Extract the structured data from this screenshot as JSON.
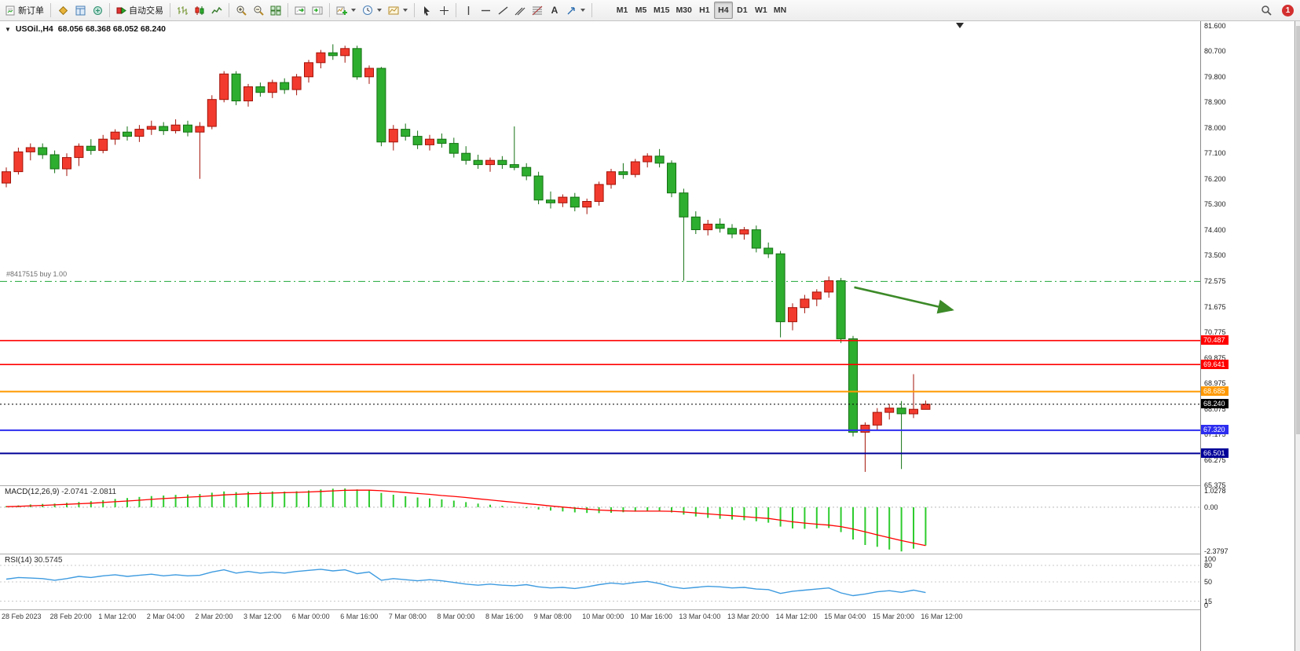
{
  "toolbar": {
    "new_order": "新订单",
    "auto_trading": "自动交易",
    "text_tool": "A",
    "timeframes": [
      "M1",
      "M5",
      "M15",
      "M30",
      "H1",
      "H4",
      "D1",
      "W1",
      "MN"
    ],
    "active_timeframe": "H4",
    "notification_badge": "1"
  },
  "main_chart": {
    "title": "USOil.,H4",
    "ohlc_text": "68.056 68.368 68.052 68.240",
    "position_label": "#8417515 buy 1.00"
  },
  "macd_panel": {
    "label": "MACD(12,26,9)",
    "values_text": "-2.0741 -2.0811"
  },
  "rsi_panel": {
    "label": "RSI(14)",
    "value_text": "30.5745"
  },
  "colors": {
    "bull": "#f23b2e",
    "bull_border": "#a31208",
    "bear": "#2eae2e",
    "bear_border": "#137013",
    "macd_hist": "#2ecc2e",
    "macd_signal": "#ff0000",
    "rsi_line": "#3e9be0",
    "buy_line": "#21a637",
    "level_red": "#ff0000",
    "level_orange": "#ff9900",
    "level_blue": "#2d2df0",
    "level_navy": "#000099",
    "current_price_bg": "#000000",
    "arrow": "#3c8a28"
  },
  "chart_data": [
    {
      "type": "candlestick",
      "symbol": "USOil",
      "timeframe": "H4",
      "current_ohlc": {
        "open": 68.056,
        "high": 68.368,
        "low": 68.052,
        "close": 68.24
      },
      "ylim": [
        65.375,
        81.765
      ],
      "y_tick_labels": [
        "81.600",
        "80.700",
        "79.800",
        "78.900",
        "78.000",
        "77.100",
        "76.200",
        "75.300",
        "74.400",
        "73.500",
        "72.575",
        "71.675",
        "70.775",
        "69.875",
        "68.975",
        "68.075",
        "67.175",
        "66.275",
        "65.375"
      ],
      "x_tick_labels": [
        "28 Feb 2023",
        "28 Feb 20:00",
        "1 Mar 12:00",
        "2 Mar 04:00",
        "2 Mar 20:00",
        "3 Mar 12:00",
        "6 Mar 00:00",
        "6 Mar 16:00",
        "7 Mar 08:00",
        "8 Mar 00:00",
        "8 Mar 16:00",
        "9 Mar 08:00",
        "10 Mar 00:00",
        "10 Mar 16:00",
        "13 Mar 04:00",
        "13 Mar 20:00",
        "14 Mar 12:00",
        "15 Mar 04:00",
        "15 Mar 20:00",
        "16 Mar 12:00"
      ],
      "x_ticks_every_n_candles": 4,
      "candles": [
        [
          76.05,
          76.6,
          75.9,
          76.45
        ],
        [
          76.45,
          77.3,
          76.35,
          77.15
        ],
        [
          77.15,
          77.45,
          76.85,
          77.3
        ],
        [
          77.3,
          77.45,
          76.9,
          77.05
        ],
        [
          77.05,
          77.2,
          76.4,
          76.55
        ],
        [
          76.55,
          77.1,
          76.3,
          76.95
        ],
        [
          76.95,
          77.45,
          76.65,
          77.35
        ],
        [
          77.35,
          77.6,
          77.05,
          77.2
        ],
        [
          77.2,
          77.75,
          77.1,
          77.6
        ],
        [
          77.6,
          77.95,
          77.4,
          77.85
        ],
        [
          77.85,
          78.05,
          77.55,
          77.7
        ],
        [
          77.7,
          78.1,
          77.5,
          77.95
        ],
        [
          77.95,
          78.25,
          77.75,
          78.05
        ],
        [
          78.05,
          78.2,
          77.75,
          77.9
        ],
        [
          77.9,
          78.3,
          77.8,
          78.1
        ],
        [
          78.1,
          78.25,
          77.7,
          77.85
        ],
        [
          77.85,
          78.2,
          76.2,
          78.05
        ],
        [
          78.05,
          79.15,
          77.95,
          79.0
        ],
        [
          79.0,
          80.0,
          78.9,
          79.9
        ],
        [
          79.9,
          80.0,
          78.8,
          78.95
        ],
        [
          78.95,
          79.55,
          78.75,
          79.45
        ],
        [
          79.45,
          79.6,
          79.1,
          79.25
        ],
        [
          79.25,
          79.7,
          79.05,
          79.6
        ],
        [
          79.6,
          79.75,
          79.2,
          79.35
        ],
        [
          79.35,
          79.9,
          79.15,
          79.8
        ],
        [
          79.8,
          80.4,
          79.6,
          80.3
        ],
        [
          80.3,
          80.75,
          80.1,
          80.65
        ],
        [
          80.65,
          80.95,
          80.4,
          80.55
        ],
        [
          80.55,
          80.9,
          80.3,
          80.8
        ],
        [
          80.8,
          80.9,
          79.7,
          79.8
        ],
        [
          79.8,
          80.2,
          79.55,
          80.1
        ],
        [
          80.1,
          80.15,
          77.35,
          77.5
        ],
        [
          77.5,
          78.1,
          77.2,
          77.95
        ],
        [
          77.95,
          78.15,
          77.55,
          77.7
        ],
        [
          77.7,
          77.9,
          77.25,
          77.4
        ],
        [
          77.4,
          77.75,
          77.2,
          77.6
        ],
        [
          77.6,
          77.8,
          77.3,
          77.45
        ],
        [
          77.45,
          77.65,
          76.95,
          77.1
        ],
        [
          77.1,
          77.35,
          76.7,
          76.85
        ],
        [
          76.85,
          77.05,
          76.55,
          76.7
        ],
        [
          76.7,
          76.95,
          76.45,
          76.85
        ],
        [
          76.85,
          77.0,
          76.55,
          76.7
        ],
        [
          76.7,
          78.05,
          76.5,
          76.6
        ],
        [
          76.6,
          76.75,
          76.15,
          76.3
        ],
        [
          76.3,
          76.45,
          75.3,
          75.45
        ],
        [
          75.45,
          75.75,
          75.15,
          75.35
        ],
        [
          75.35,
          75.65,
          75.2,
          75.55
        ],
        [
          75.55,
          75.7,
          75.05,
          75.2
        ],
        [
          75.2,
          75.5,
          74.95,
          75.4
        ],
        [
          75.4,
          76.1,
          75.25,
          76.0
        ],
        [
          76.0,
          76.55,
          75.85,
          76.45
        ],
        [
          76.45,
          76.75,
          76.2,
          76.35
        ],
        [
          76.35,
          76.9,
          76.25,
          76.8
        ],
        [
          76.8,
          77.1,
          76.6,
          77.0
        ],
        [
          77.0,
          77.25,
          76.6,
          76.75
        ],
        [
          76.75,
          76.85,
          75.55,
          75.7
        ],
        [
          75.7,
          75.85,
          72.6,
          74.85
        ],
        [
          74.85,
          75.05,
          74.25,
          74.4
        ],
        [
          74.4,
          74.75,
          74.2,
          74.6
        ],
        [
          74.6,
          74.8,
          74.3,
          74.45
        ],
        [
          74.45,
          74.6,
          74.1,
          74.25
        ],
        [
          74.25,
          74.5,
          74.05,
          74.4
        ],
        [
          74.4,
          74.55,
          73.6,
          73.75
        ],
        [
          73.75,
          73.95,
          73.4,
          73.55
        ],
        [
          73.55,
          73.65,
          70.6,
          71.15
        ],
        [
          71.15,
          71.8,
          70.85,
          71.65
        ],
        [
          71.65,
          72.1,
          71.45,
          71.95
        ],
        [
          71.95,
          72.3,
          71.7,
          72.2
        ],
        [
          72.2,
          72.75,
          72.0,
          72.6
        ],
        [
          72.6,
          72.7,
          70.4,
          70.55
        ],
        [
          70.55,
          70.65,
          67.1,
          67.25
        ],
        [
          67.25,
          67.6,
          65.85,
          67.5
        ],
        [
          67.5,
          68.1,
          67.3,
          67.95
        ],
        [
          67.95,
          68.25,
          67.7,
          68.1
        ],
        [
          68.1,
          68.35,
          65.95,
          67.9
        ],
        [
          67.9,
          69.3,
          67.75,
          68.06
        ],
        [
          68.056,
          68.368,
          68.052,
          68.24
        ]
      ],
      "horizontal_levels": [
        {
          "name": "buy-position-line",
          "price": 72.575,
          "style": "dashdot",
          "color_key": "buy_line",
          "width": 1,
          "tag": null
        },
        {
          "name": "resistance-line-1",
          "price": 70.487,
          "style": "solid",
          "color_key": "level_red",
          "width": 1.6,
          "tag": "70.487"
        },
        {
          "name": "resistance-line-2",
          "price": 69.641,
          "style": "solid",
          "color_key": "level_red",
          "width": 1.6,
          "tag": "69.641"
        },
        {
          "name": "orange-level-line",
          "price": 68.685,
          "style": "solid",
          "color_key": "level_orange",
          "width": 2,
          "tag": "68.685"
        },
        {
          "name": "current-price-line",
          "price": 68.24,
          "style": "dotted",
          "color_key": "current_price_bg",
          "width": 1,
          "tag": "68.240"
        },
        {
          "name": "support-line-1",
          "price": 67.32,
          "style": "solid",
          "color_key": "level_blue",
          "width": 2,
          "tag": "67.320"
        },
        {
          "name": "support-line-2",
          "price": 66.501,
          "style": "solid",
          "color_key": "level_navy",
          "width": 2,
          "tag": "66.501"
        }
      ],
      "arrow_annotation": {
        "x1_bar": 70.1,
        "y1_price": 72.37,
        "x2_bar": 78.2,
        "y2_price": 71.57
      },
      "shift_marker_x": 1222
    },
    {
      "type": "bar",
      "name": "MACD(12,26,9)",
      "display_values": [
        -2.0741,
        -2.0811
      ],
      "ylim": [
        -2.52,
        1.15
      ],
      "y_tick_labels": [
        "1.0278",
        "0.00",
        "-2.3797"
      ],
      "histogram": [
        0.06,
        0.1,
        0.15,
        0.18,
        0.2,
        0.24,
        0.29,
        0.33,
        0.38,
        0.45,
        0.5,
        0.56,
        0.61,
        0.64,
        0.67,
        0.69,
        0.72,
        0.79,
        0.86,
        0.82,
        0.84,
        0.85,
        0.86,
        0.85,
        0.87,
        0.91,
        0.97,
        1.01,
        1.02,
        0.97,
        0.94,
        0.78,
        0.68,
        0.6,
        0.53,
        0.48,
        0.43,
        0.36,
        0.28,
        0.2,
        0.14,
        0.08,
        0.02,
        -0.05,
        -0.12,
        -0.18,
        -0.23,
        -0.28,
        -0.31,
        -0.32,
        -0.3,
        -0.27,
        -0.24,
        -0.21,
        -0.2,
        -0.28,
        -0.4,
        -0.5,
        -0.58,
        -0.63,
        -0.67,
        -0.7,
        -0.76,
        -0.84,
        -1.05,
        -1.15,
        -1.17,
        -1.15,
        -1.13,
        -1.35,
        -1.75,
        -2.05,
        -2.15,
        -2.3,
        -2.4,
        -2.25,
        -2.0741
      ],
      "signal_line": [
        0.03,
        0.05,
        0.08,
        0.1,
        0.13,
        0.16,
        0.19,
        0.22,
        0.26,
        0.3,
        0.34,
        0.38,
        0.43,
        0.47,
        0.51,
        0.55,
        0.58,
        0.62,
        0.67,
        0.7,
        0.73,
        0.75,
        0.77,
        0.79,
        0.81,
        0.83,
        0.86,
        0.89,
        0.92,
        0.93,
        0.93,
        0.9,
        0.85,
        0.8,
        0.75,
        0.7,
        0.64,
        0.59,
        0.53,
        0.46,
        0.4,
        0.33,
        0.27,
        0.2,
        0.14,
        0.07,
        0.01,
        -0.05,
        -0.1,
        -0.15,
        -0.18,
        -0.2,
        -0.21,
        -0.21,
        -0.21,
        -0.22,
        -0.26,
        -0.31,
        -0.36,
        -0.41,
        -0.46,
        -0.51,
        -0.56,
        -0.61,
        -0.7,
        -0.79,
        -0.86,
        -0.92,
        -0.97,
        -1.05,
        -1.18,
        -1.34,
        -1.5,
        -1.66,
        -1.81,
        -1.95,
        -2.0811
      ]
    },
    {
      "type": "line",
      "name": "RSI(14)",
      "display_value": 30.5745,
      "ylim": [
        0,
        100
      ],
      "y_tick_labels": [
        "100",
        "80",
        "50",
        "15",
        "0"
      ],
      "levels": [
        80,
        50,
        15
      ],
      "values": [
        55,
        58,
        57,
        56,
        53,
        56,
        60,
        58,
        61,
        63,
        60,
        62,
        64,
        61,
        63,
        61,
        62,
        68,
        72,
        66,
        69,
        66,
        68,
        66,
        69,
        71,
        73,
        70,
        72,
        65,
        68,
        53,
        56,
        54,
        52,
        54,
        52,
        49,
        46,
        44,
        46,
        44,
        43,
        45,
        41,
        39,
        40,
        38,
        41,
        45,
        48,
        46,
        49,
        51,
        47,
        41,
        38,
        40,
        42,
        41,
        39,
        40,
        37,
        36,
        29,
        33,
        35,
        37,
        39,
        30,
        25,
        28,
        32,
        34,
        31,
        35,
        30.5745
      ]
    }
  ]
}
